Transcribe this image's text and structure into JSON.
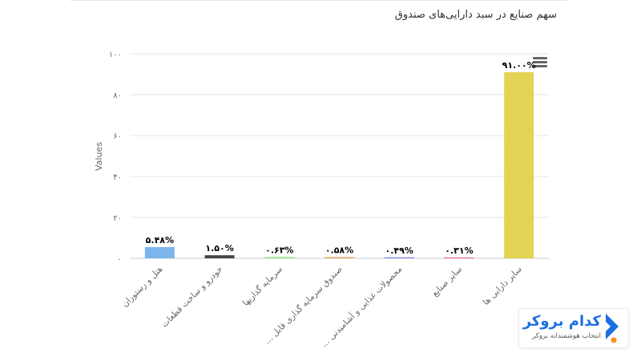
{
  "chart_data": {
    "type": "bar",
    "title": "سهم صنایع در سبد دارایی‌های صندوق",
    "ylabel": "Values",
    "ylim": [
      0,
      100
    ],
    "yticks": [
      "۰",
      "۲۰",
      "۴۰",
      "۶۰",
      "۸۰",
      "۱۰۰"
    ],
    "grid": true,
    "legend": false,
    "categories": [
      "هتل و رستوران",
      "خودرو و ساخت قطعات",
      "سرمایه گذاریها",
      "... صندوق سرمایه گذاری قابل",
      "... محصولات غذایی و آشامیدنی",
      "سایر صنایع",
      "سایر دارایی ها"
    ],
    "values": [
      5.48,
      1.5,
      0.63,
      0.58,
      0.49,
      0.31,
      91.0
    ],
    "data_labels": [
      "۵.۴۸%",
      "۱.۵۰%",
      "۰.۶۳%",
      "۰.۵۸%",
      "۰.۴۹%",
      "۰.۳۱%",
      "۹۱.۰۰%"
    ],
    "colors": [
      "#7cb5ec",
      "#434348",
      "#90ed7d",
      "#f7a35c",
      "#8085e9",
      "#f15c80",
      "#e4d354"
    ]
  },
  "ui": {
    "menu_icon": "hamburger-menu-icon"
  },
  "watermark": {
    "title": "کدام بروکر",
    "subtitle": "انتخاب هوشمندانه بروکر",
    "colors": {
      "blue": "#1b6fe0",
      "orange": "#f7931e"
    }
  }
}
